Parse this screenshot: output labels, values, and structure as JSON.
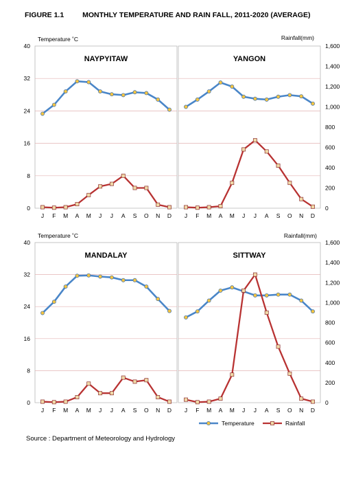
{
  "figure": {
    "number": "FIGURE 1.1",
    "title": "MONTHLY TEMPERATURE AND RAIN FALL, 2011-2020 (AVERAGE)"
  },
  "source": "Source : Department  of Meteorology and Hydrology",
  "colors": {
    "temperature_line": "#4a86c8",
    "temperature_marker": "#f5c542",
    "rainfall_line": "#b83232",
    "rainfall_marker": "#f0d9a8",
    "grid": "#e3b3b3",
    "border": "#b8b8b8"
  },
  "chart_data": {
    "type": "line",
    "left_axis_label": "Temperature ˚C",
    "right_axis_label": "Rainfall(mm)",
    "left_ticks": [
      "40",
      "32",
      "24",
      "16",
      "8",
      "0"
    ],
    "right_ticks": [
      "1,600",
      "1,400",
      "1,200",
      "1,000",
      "800",
      "600",
      "400",
      "200",
      "0"
    ],
    "temperature_range": [
      0,
      40
    ],
    "rainfall_range": [
      0,
      1600
    ],
    "months": [
      "J",
      "F",
      "M",
      "A",
      "M",
      "J",
      "J",
      "A",
      "S",
      "O",
      "N",
      "D"
    ],
    "legend": {
      "temperature": "Temperature",
      "rainfall": "Rainfall",
      "placement": "bottom-right"
    },
    "panels": [
      {
        "title": "NAYPYITAW",
        "temperature": [
          23.3,
          25.5,
          28.8,
          31.3,
          31.1,
          28.8,
          28.1,
          27.9,
          28.6,
          28.4,
          26.8,
          24.3
        ],
        "rainfall": [
          10,
          5,
          10,
          40,
          130,
          215,
          240,
          320,
          200,
          200,
          35,
          10
        ]
      },
      {
        "title": "YANGON",
        "temperature": [
          25.0,
          26.8,
          28.8,
          31.0,
          30.0,
          27.5,
          27.0,
          26.8,
          27.5,
          27.9,
          27.6,
          25.8
        ],
        "rainfall": [
          10,
          5,
          10,
          20,
          250,
          580,
          670,
          560,
          420,
          250,
          90,
          15
        ]
      },
      {
        "title": "MANDALAY",
        "temperature": [
          22.4,
          25.2,
          29.0,
          31.7,
          31.8,
          31.5,
          31.3,
          30.6,
          30.6,
          29.0,
          25.9,
          22.9
        ],
        "rainfall": [
          10,
          5,
          10,
          55,
          190,
          95,
          95,
          250,
          210,
          225,
          55,
          10
        ]
      },
      {
        "title": "SITTWAY",
        "temperature": [
          21.3,
          22.8,
          25.5,
          28.0,
          28.8,
          27.8,
          26.8,
          26.8,
          27.0,
          27.0,
          25.5,
          22.8
        ],
        "rainfall": [
          30,
          5,
          10,
          40,
          280,
          1120,
          1280,
          900,
          560,
          290,
          40,
          10
        ]
      }
    ]
  }
}
